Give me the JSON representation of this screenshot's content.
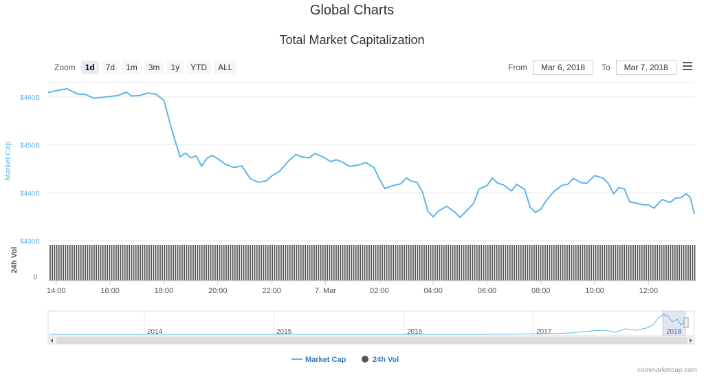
{
  "page": {
    "title": "Global Charts",
    "subtitle": "Total Market Capitalization",
    "credit": "coinmarketcap.com"
  },
  "toolbar": {
    "zoom_label": "Zoom",
    "zoom_options": [
      "1d",
      "7d",
      "1m",
      "3m",
      "1y",
      "YTD",
      "ALL"
    ],
    "selected_zoom": "1d",
    "from_label": "From",
    "from_value": "Mar 6, 2018",
    "to_label": "To",
    "to_value": "Mar 7, 2018"
  },
  "colors": {
    "line": "#5cb5e6",
    "volume": "#555555",
    "grid": "#e6e6e6",
    "axis_text": "#666666"
  },
  "chart_data": {
    "type": "line",
    "title": "Total Market Capitalization",
    "ylabel": "Market Cap",
    "y_ticks": [
      "$460B",
      "$450B",
      "$440B",
      "$430B"
    ],
    "y_tick_values": [
      460,
      450,
      440,
      430
    ],
    "x_ticks": [
      "14:00",
      "16:00",
      "18:00",
      "20:00",
      "22:00",
      "7. Mar",
      "02:00",
      "04:00",
      "06:00",
      "08:00",
      "10:00",
      "12:00"
    ],
    "x_tick_hours": [
      14,
      16,
      18,
      20,
      22,
      24,
      26,
      28,
      30,
      32,
      34,
      36
    ],
    "x_range_hours": [
      13.7,
      37.7
    ],
    "ylim": [
      430,
      463
    ],
    "series": [
      {
        "name": "Market Cap",
        "x": [
          13.7,
          14,
          14.4,
          14.8,
          15.1,
          15.4,
          15.7,
          16,
          16.3,
          16.6,
          16.8,
          17.1,
          17.4,
          17.7,
          18,
          18.3,
          18.6,
          18.8,
          19,
          19.2,
          19.4,
          19.6,
          19.8,
          20,
          20.3,
          20.6,
          20.9,
          21.2,
          21.5,
          21.8,
          22,
          22.3,
          22.6,
          22.9,
          23.1,
          23.4,
          23.6,
          23.9,
          24.2,
          24.4,
          24.6,
          24.9,
          25.2,
          25.5,
          25.8,
          26,
          26.2,
          26.5,
          26.8,
          27,
          27.2,
          27.4,
          27.6,
          27.8,
          28,
          28.2,
          28.5,
          28.8,
          29,
          29.3,
          29.5,
          29.7,
          30,
          30.2,
          30.4,
          30.6,
          30.9,
          31.1,
          31.4,
          31.6,
          31.8,
          32,
          32.2,
          32.5,
          32.8,
          33,
          33.2,
          33.5,
          33.7,
          34,
          34.3,
          34.5,
          34.7,
          34.9,
          35.1,
          35.3,
          35.5,
          35.8,
          36,
          36.2,
          36.5,
          36.8,
          37,
          37.2,
          37.4,
          37.55,
          37.7
        ],
        "y": [
          460.9,
          461.3,
          461.7,
          460.6,
          460.5,
          459.7,
          459.9,
          460.1,
          460.3,
          461.0,
          460.2,
          460.3,
          460.8,
          460.6,
          459.3,
          453.0,
          447.5,
          448.3,
          447.3,
          447.7,
          445.6,
          447.2,
          447.8,
          447.1,
          445.9,
          445.3,
          445.6,
          443.0,
          442.2,
          442.5,
          443.5,
          444.5,
          446.5,
          448.0,
          447.5,
          447.3,
          448.2,
          447.5,
          446.5,
          446.9,
          446.5,
          445.5,
          445.8,
          446.3,
          445.3,
          442.9,
          440.9,
          441.5,
          441.9,
          443.1,
          442.4,
          442.2,
          440.2,
          436.2,
          435.0,
          436.2,
          437.2,
          436.0,
          434.9,
          436.6,
          437.8,
          440.8,
          441.5,
          443.1,
          442.0,
          441.7,
          440.4,
          441.8,
          440.7,
          437.0,
          435.9,
          436.6,
          438.4,
          440.4,
          441.6,
          441.8,
          443.0,
          442.1,
          442.0,
          443.6,
          443.1,
          442.0,
          439.8,
          441.1,
          440.8,
          438.1,
          437.9,
          437.5,
          437.5,
          436.8,
          438.6,
          438.0,
          438.9,
          439.0,
          439.8,
          439.0,
          435.6
        ]
      },
      {
        "name": "24h Vol",
        "type": "bar",
        "values": "uniform"
      }
    ],
    "volume_label": "24h Vol",
    "volume_tick": "0",
    "navigator": {
      "years": [
        "2014",
        "2015",
        "2016",
        "2017",
        "2018"
      ]
    }
  }
}
